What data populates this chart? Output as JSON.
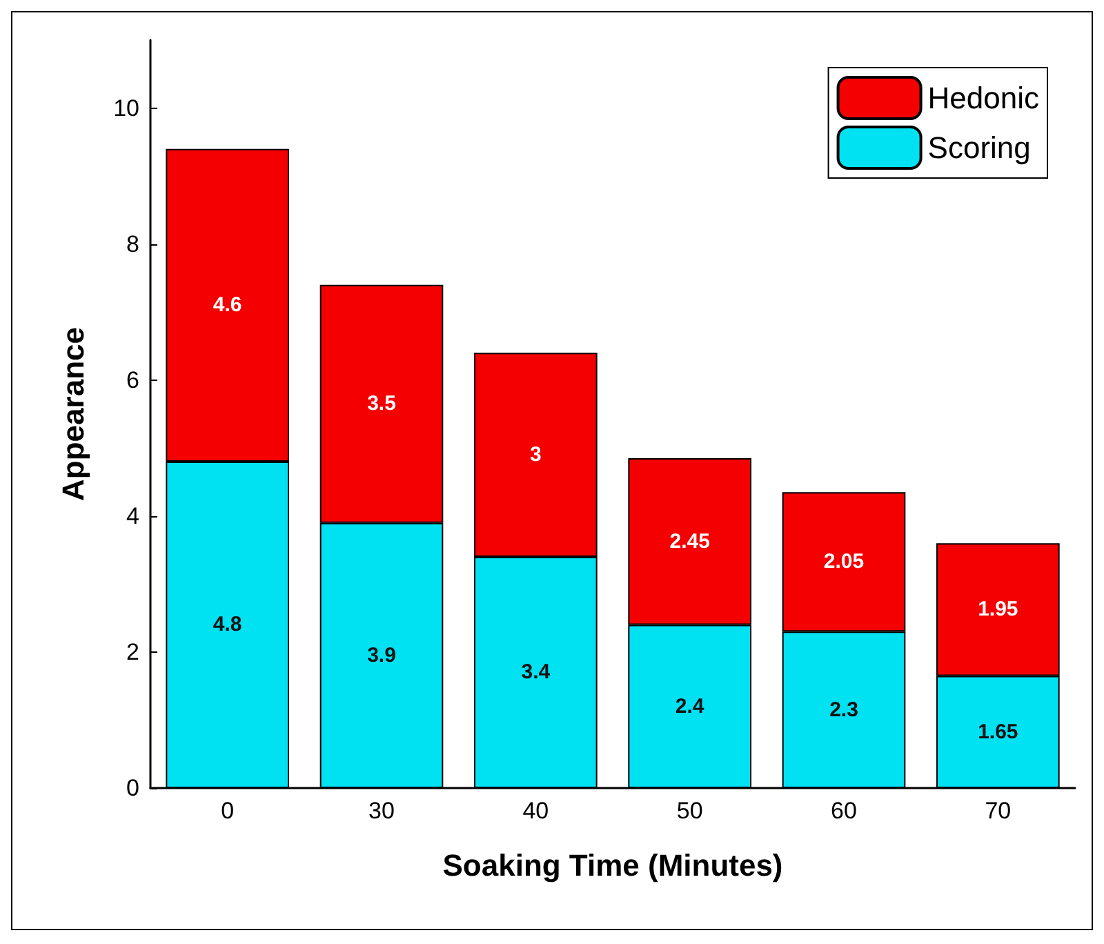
{
  "chart_data": {
    "type": "bar",
    "stacked": true,
    "xlabel": "Soaking Time (Minutes)",
    "ylabel": "Appearance",
    "categories": [
      "0",
      "30",
      "40",
      "50",
      "60",
      "70"
    ],
    "series": [
      {
        "name": "Scoring",
        "color": "#00e1f2",
        "values": [
          4.8,
          3.9,
          3.4,
          2.4,
          2.3,
          1.65
        ]
      },
      {
        "name": "Hedonic",
        "color": "#f50000",
        "values": [
          4.6,
          3.5,
          3,
          2.45,
          2.05,
          1.95
        ]
      }
    ],
    "ylim": [
      0,
      11
    ],
    "yticks": [
      0,
      2,
      4,
      6,
      8,
      10
    ],
    "data_labels": true,
    "legend": "top right",
    "grid": false
  }
}
